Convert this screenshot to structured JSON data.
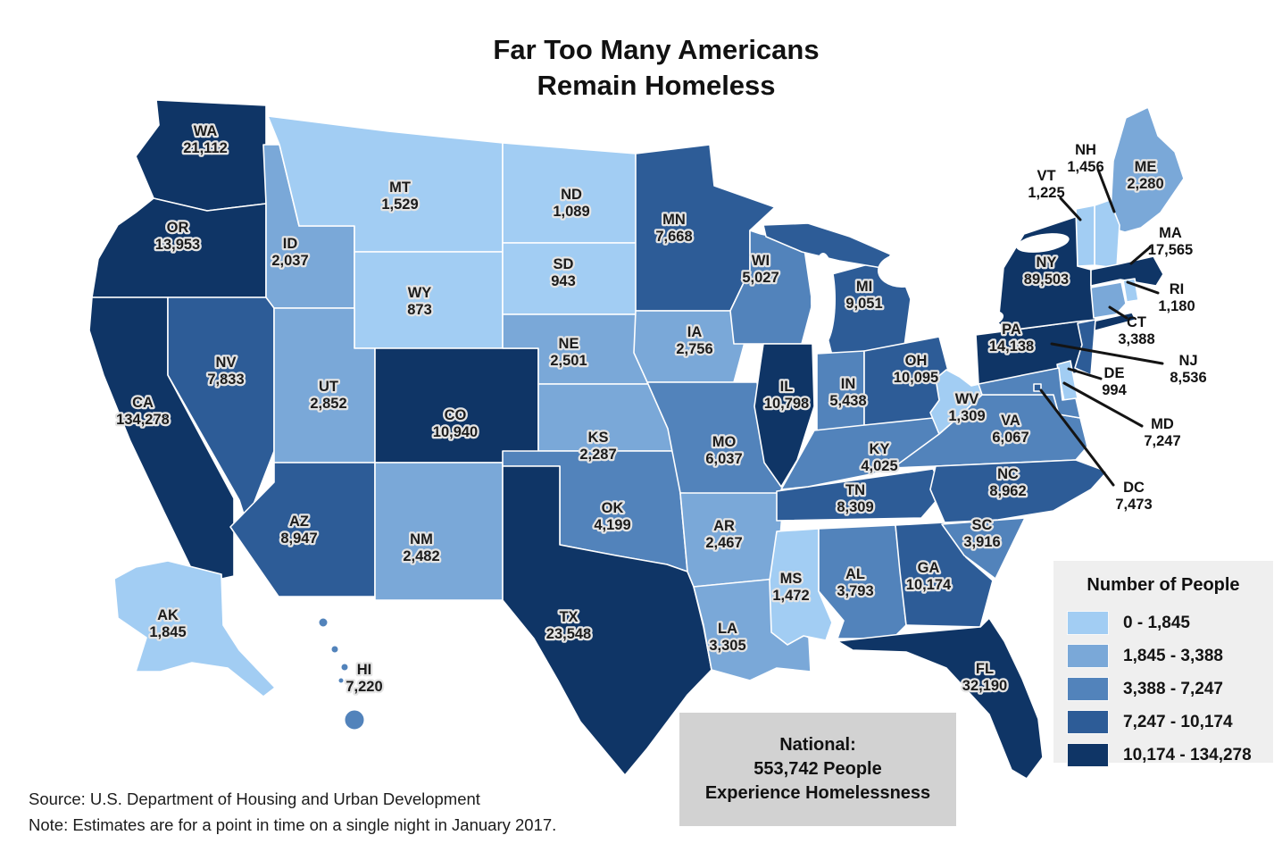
{
  "title": {
    "line1": "Far Too Many Americans",
    "line2": "Remain Homeless"
  },
  "source": "Source: U.S. Department of Housing and Urban Development",
  "note": "Note: Estimates are for a point in time on a single night in January 2017.",
  "national": {
    "lines": [
      "National:",
      "553,742 People",
      "Experience Homelessness"
    ]
  },
  "chart_data": {
    "type": "choropleth-map",
    "region": "United States",
    "title": "Far Too Many Americans Remain Homeless",
    "metric": "Number of people experiencing homelessness, point-in-time, single night, January 2017",
    "national_total": "553,742",
    "legend": {
      "title": "Number of People",
      "position": "bottom-right",
      "bins": [
        {
          "label": "0 - 1,845",
          "color": "#a2cdf3"
        },
        {
          "label": "1,845 - 3,388",
          "color": "#7aa8d8"
        },
        {
          "label": "3,388 - 7,247",
          "color": "#5283bb"
        },
        {
          "label": "7,247 - 10,174",
          "color": "#2d5c97"
        },
        {
          "label": "10,174 - 134,278",
          "color": "#0f3566"
        }
      ]
    },
    "states": [
      {
        "abbr": "WA",
        "value": 21112,
        "label": "21,112",
        "bin": 5
      },
      {
        "abbr": "OR",
        "value": 13953,
        "label": "13,953",
        "bin": 5
      },
      {
        "abbr": "CA",
        "value": 134278,
        "label": "134,278",
        "bin": 5
      },
      {
        "abbr": "NV",
        "value": 7833,
        "label": "7,833",
        "bin": 4
      },
      {
        "abbr": "ID",
        "value": 2037,
        "label": "2,037",
        "bin": 2
      },
      {
        "abbr": "MT",
        "value": 1529,
        "label": "1,529",
        "bin": 1
      },
      {
        "abbr": "WY",
        "value": 873,
        "label": "873",
        "bin": 1
      },
      {
        "abbr": "UT",
        "value": 2852,
        "label": "2,852",
        "bin": 2
      },
      {
        "abbr": "CO",
        "value": 10940,
        "label": "10,940",
        "bin": 5
      },
      {
        "abbr": "AZ",
        "value": 8947,
        "label": "8,947",
        "bin": 4
      },
      {
        "abbr": "NM",
        "value": 2482,
        "label": "2,482",
        "bin": 2
      },
      {
        "abbr": "ND",
        "value": 1089,
        "label": "1,089",
        "bin": 1
      },
      {
        "abbr": "SD",
        "value": 943,
        "label": "943",
        "bin": 1
      },
      {
        "abbr": "NE",
        "value": 2501,
        "label": "2,501",
        "bin": 2
      },
      {
        "abbr": "KS",
        "value": 2287,
        "label": "2,287",
        "bin": 2
      },
      {
        "abbr": "OK",
        "value": 4199,
        "label": "4,199",
        "bin": 3
      },
      {
        "abbr": "TX",
        "value": 23548,
        "label": "23,548",
        "bin": 5
      },
      {
        "abbr": "MN",
        "value": 7668,
        "label": "7,668",
        "bin": 4
      },
      {
        "abbr": "IA",
        "value": 2756,
        "label": "2,756",
        "bin": 2
      },
      {
        "abbr": "MO",
        "value": 6037,
        "label": "6,037",
        "bin": 3
      },
      {
        "abbr": "AR",
        "value": 2467,
        "label": "2,467",
        "bin": 2
      },
      {
        "abbr": "LA",
        "value": 3305,
        "label": "3,305",
        "bin": 2
      },
      {
        "abbr": "WI",
        "value": 5027,
        "label": "5,027",
        "bin": 3
      },
      {
        "abbr": "IL",
        "value": 10798,
        "label": "10,798",
        "bin": 5
      },
      {
        "abbr": "MS",
        "value": 1472,
        "label": "1,472",
        "bin": 1
      },
      {
        "abbr": "MI",
        "value": 9051,
        "label": "9,051",
        "bin": 4
      },
      {
        "abbr": "IN",
        "value": 5438,
        "label": "5,438",
        "bin": 3
      },
      {
        "abbr": "TN",
        "value": 8309,
        "label": "8,309",
        "bin": 4
      },
      {
        "abbr": "AL",
        "value": 3793,
        "label": "3,793",
        "bin": 3
      },
      {
        "abbr": "OH",
        "value": 10095,
        "label": "10,095",
        "bin": 4
      },
      {
        "abbr": "KY",
        "value": 4025,
        "label": "4,025",
        "bin": 3
      },
      {
        "abbr": "GA",
        "value": 10174,
        "label": "10,174",
        "bin": 4
      },
      {
        "abbr": "WV",
        "value": 1309,
        "label": "1,309",
        "bin": 1
      },
      {
        "abbr": "SC",
        "value": 3916,
        "label": "3,916",
        "bin": 3
      },
      {
        "abbr": "FL",
        "value": 32190,
        "label": "32,190",
        "bin": 5
      },
      {
        "abbr": "VA",
        "value": 6067,
        "label": "6,067",
        "bin": 3
      },
      {
        "abbr": "NC",
        "value": 8962,
        "label": "8,962",
        "bin": 4
      },
      {
        "abbr": "PA",
        "value": 14138,
        "label": "14,138",
        "bin": 5
      },
      {
        "abbr": "NY",
        "value": 89503,
        "label": "89,503",
        "bin": 5
      },
      {
        "abbr": "ME",
        "value": 2280,
        "label": "2,280",
        "bin": 2
      },
      {
        "abbr": "AK",
        "value": 1845,
        "label": "1,845",
        "bin": 1
      },
      {
        "abbr": "HI",
        "value": 7220,
        "label": "7,220",
        "bin": 3
      },
      {
        "abbr": "NH",
        "value": 1456,
        "label": "1,456",
        "bin": 1
      },
      {
        "abbr": "VT",
        "value": 1225,
        "label": "1,225",
        "bin": 1
      },
      {
        "abbr": "MA",
        "value": 17565,
        "label": "17,565",
        "bin": 5
      },
      {
        "abbr": "RI",
        "value": 1180,
        "label": "1,180",
        "bin": 1
      },
      {
        "abbr": "CT",
        "value": 3388,
        "label": "3,388",
        "bin": 2
      },
      {
        "abbr": "NJ",
        "value": 8536,
        "label": "8,536",
        "bin": 4
      },
      {
        "abbr": "DE",
        "value": 994,
        "label": "994",
        "bin": 1
      },
      {
        "abbr": "MD",
        "value": 7247,
        "label": "7,247",
        "bin": 3
      },
      {
        "abbr": "DC",
        "value": 7473,
        "label": "7,473",
        "bin": 4
      }
    ]
  }
}
